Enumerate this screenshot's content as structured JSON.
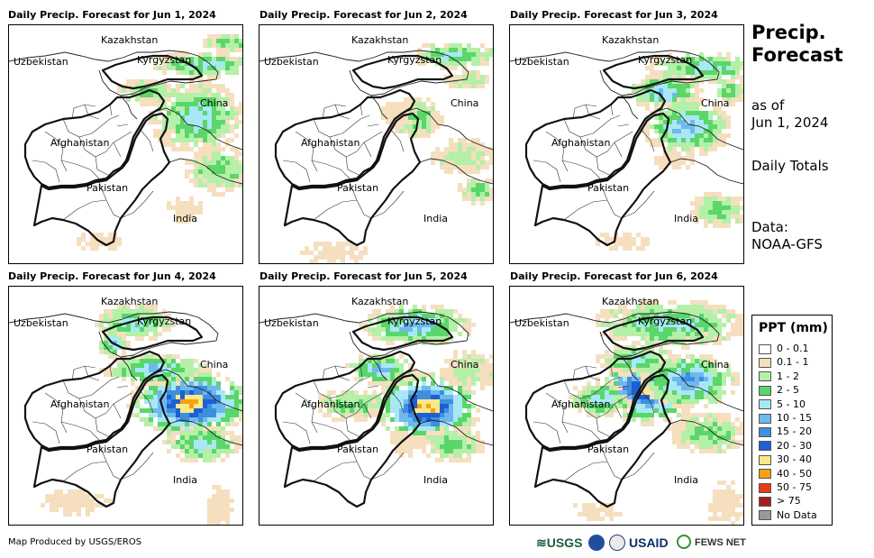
{
  "panels": [
    {
      "title": "Daily Precip. Forecast for Jun 1, 2024"
    },
    {
      "title": "Daily Precip. Forecast for Jun 2, 2024"
    },
    {
      "title": "Daily Precip. Forecast for Jun 3, 2024"
    },
    {
      "title": "Daily Precip. Forecast for Jun 4, 2024"
    },
    {
      "title": "Daily Precip. Forecast for Jun 5, 2024"
    },
    {
      "title": "Daily Precip. Forecast for Jun 6, 2024"
    }
  ],
  "map_labels": {
    "kazakhstan": "Kazakhstan",
    "uzbekistan": "Uzbekistan",
    "kyrgyzstan": "Kyrgyzstan",
    "china": "China",
    "afghanistan": "Afghanistan",
    "pakistan": "Pakistan",
    "india": "India"
  },
  "sidebar": {
    "title_line1": "Precip.",
    "title_line2": "Forecast",
    "asof_line1": "as of",
    "asof_line2": "Jun 1, 2024",
    "totals": "Daily Totals",
    "data_line1": "Data:",
    "data_line2": "NOAA-GFS"
  },
  "legend": {
    "title": "PPT (mm)",
    "items": [
      {
        "label": "0 - 0.1",
        "color": "#ffffff"
      },
      {
        "label": "0.1 - 1",
        "color": "#f5dfbf"
      },
      {
        "label": "1 - 2",
        "color": "#b4f0a8"
      },
      {
        "label": "2 - 5",
        "color": "#5ad66a"
      },
      {
        "label": "5 - 10",
        "color": "#a8e8f5"
      },
      {
        "label": "10 - 15",
        "color": "#6fb8ee"
      },
      {
        "label": "15 - 20",
        "color": "#3d8fe0"
      },
      {
        "label": "20 - 30",
        "color": "#1d5fd4"
      },
      {
        "label": "30 - 40",
        "color": "#fbe889"
      },
      {
        "label": "40 - 50",
        "color": "#f8a10e"
      },
      {
        "label": "50 - 75",
        "color": "#e93c10"
      },
      {
        "label": "> 75",
        "color": "#a51d1d"
      },
      {
        "label": "No Data",
        "color": "#999999"
      }
    ]
  },
  "footer": {
    "credit": "Map Produced by USGS/EROS",
    "logo_usgs": "USGS",
    "logo_usaid": "USAID",
    "logo_fews": "FEWS NET"
  }
}
